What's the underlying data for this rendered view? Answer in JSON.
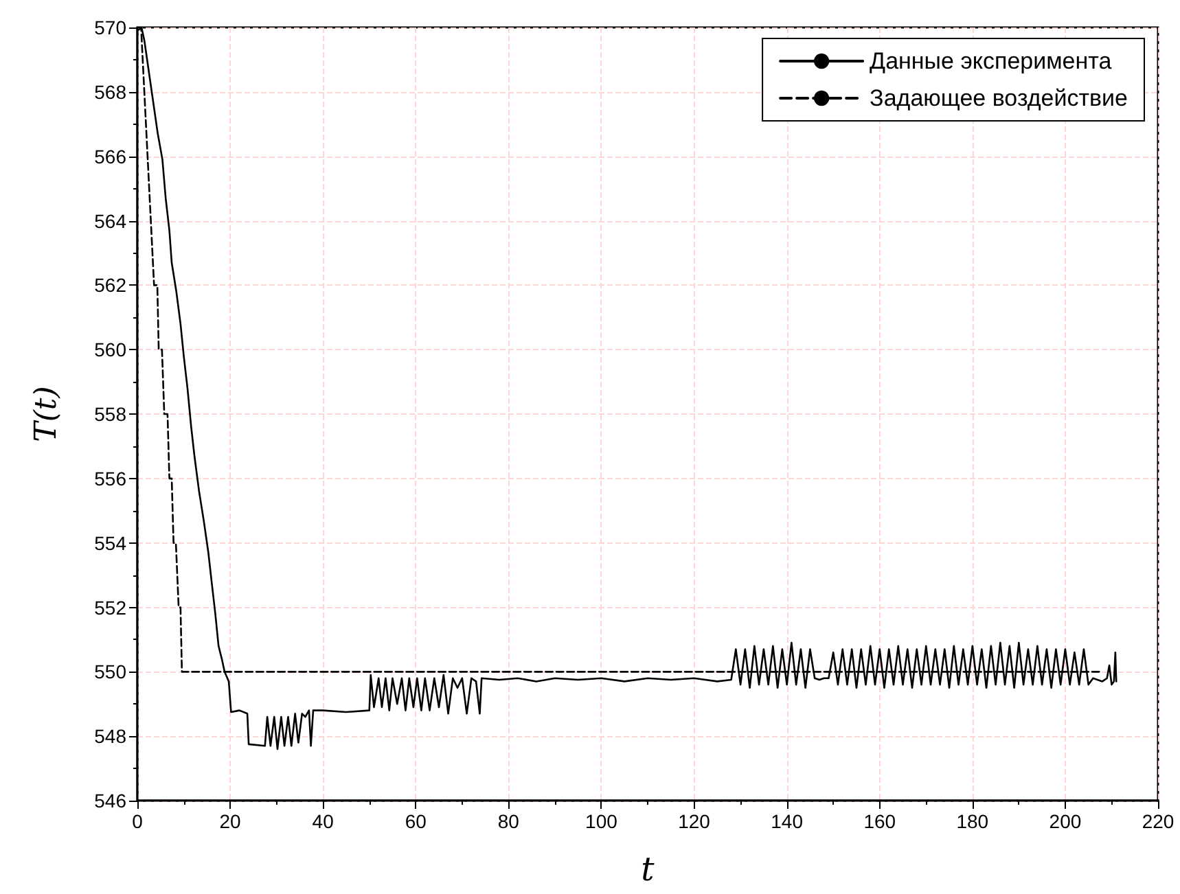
{
  "chart_data": {
    "type": "line",
    "xlabel": "t",
    "ylabel": "T(t)",
    "xlim": [
      0,
      220
    ],
    "xticks": [
      0,
      20,
      40,
      60,
      80,
      100,
      120,
      140,
      160,
      180,
      200,
      220
    ],
    "ylim": [
      546,
      570
    ],
    "yticks": [
      546,
      548,
      550,
      552,
      554,
      556,
      558,
      560,
      562,
      564,
      566,
      568,
      570
    ],
    "grid": true,
    "legend": "top right",
    "marker": "none",
    "series": [
      {
        "name": "Данные эксперимента",
        "color": "#000000",
        "line_style": "solid",
        "x": [
          0,
          0.9,
          1.5,
          2.4,
          3.2,
          4.4,
          5.4,
          6.1,
          6.9,
          7.4,
          8.4,
          9.3,
          10,
          10.8,
          11.6,
          12.3,
          13.3,
          14.3,
          15.3,
          16,
          16.8,
          17.5,
          18.2,
          18.8,
          19.7,
          20.2,
          22,
          23.7,
          24,
          27.5,
          28,
          28.7,
          29.5,
          30.2,
          31,
          31.7,
          32.5,
          33.2,
          34,
          34.7,
          35.5,
          36.2,
          37,
          37.4,
          37.9,
          40,
          45,
          50,
          50.3,
          51,
          52,
          52.7,
          53.5,
          54.3,
          55,
          56,
          57,
          57.8,
          58.6,
          59.5,
          60.3,
          61.2,
          62,
          63,
          64,
          65,
          66,
          67,
          68,
          69,
          70,
          71,
          72,
          73,
          73.8,
          74.2,
          78,
          82,
          86,
          90,
          95,
          100,
          105,
          110,
          115,
          120,
          125,
          128,
          129,
          130,
          131,
          132,
          133,
          134,
          135,
          136,
          137,
          138,
          139,
          140,
          141,
          142,
          143,
          144,
          145,
          146,
          147,
          148,
          149,
          150,
          151,
          152,
          153,
          154,
          155,
          156,
          157,
          158,
          159,
          160,
          161,
          162,
          163,
          164,
          165,
          166,
          167,
          168,
          169,
          170,
          171,
          172,
          173,
          174,
          175,
          176,
          177,
          178,
          179,
          180,
          181,
          182,
          183,
          184,
          185,
          186,
          187,
          188,
          189,
          190,
          191,
          192,
          193,
          194,
          195,
          196,
          197,
          198,
          199,
          200,
          201,
          202,
          203,
          204,
          205,
          206,
          208,
          209,
          209.5,
          210,
          210.5,
          210.8,
          211
        ],
        "values": [
          569.9,
          570,
          569.6,
          568.7,
          567.9,
          566.7,
          565.9,
          564.7,
          563.7,
          562.7,
          561.8,
          560.8,
          559.8,
          558.8,
          557.6,
          556.7,
          555.6,
          554.7,
          553.7,
          552.8,
          551.8,
          550.8,
          550.4,
          550,
          549.7,
          548.75,
          548.8,
          548.7,
          547.75,
          547.7,
          548.6,
          547.7,
          548.6,
          547.6,
          548.6,
          547.7,
          548.6,
          547.7,
          548.7,
          547.8,
          548.7,
          548.6,
          548.8,
          547.7,
          548.8,
          548.8,
          548.75,
          548.8,
          549.9,
          548.9,
          549.8,
          548.9,
          549.8,
          548.8,
          549.8,
          549,
          549.8,
          548.8,
          549.8,
          548.9,
          549.8,
          548.8,
          549.8,
          548.8,
          549.8,
          548.9,
          549.9,
          548.7,
          549.8,
          549.5,
          549.8,
          548.7,
          549.8,
          549.7,
          548.7,
          549.8,
          549.75,
          549.8,
          549.7,
          549.8,
          549.75,
          549.8,
          549.7,
          549.8,
          549.75,
          549.8,
          549.7,
          549.75,
          550.7,
          549.6,
          550.7,
          549.5,
          550.8,
          549.6,
          550.7,
          549.6,
          550.8,
          549.5,
          550.7,
          549.6,
          550.9,
          549.6,
          550.7,
          549.5,
          550.7,
          549.8,
          549.75,
          549.8,
          549.8,
          550.6,
          549.6,
          550.7,
          549.6,
          550.7,
          549.5,
          550.7,
          549.6,
          550.8,
          549.6,
          550.7,
          549.5,
          550.7,
          549.6,
          550.8,
          549.6,
          550.7,
          549.5,
          550.7,
          549.6,
          550.8,
          549.6,
          550.7,
          549.6,
          550.7,
          549.5,
          550.8,
          549.6,
          550.7,
          549.6,
          550.8,
          549.6,
          550.7,
          549.5,
          550.8,
          549.6,
          550.9,
          549.6,
          550.8,
          549.5,
          550.9,
          549.6,
          550.7,
          549.6,
          550.8,
          549.6,
          550.7,
          549.5,
          550.7,
          549.6,
          550.7,
          549.6,
          550.6,
          549.6,
          550.7,
          549.6,
          549.8,
          549.7,
          549.8,
          550.2,
          549.6,
          549.7,
          550.6,
          549.7
        ]
      },
      {
        "name": "Задающее воздействие",
        "color": "#000000",
        "line_style": "dashed",
        "x": [
          0,
          0.8,
          3.6,
          4.3,
          4.6,
          5.3,
          5.8,
          6.5,
          6.9,
          7.4,
          7.8,
          8.3,
          8.9,
          9.3,
          9.6,
          208
        ],
        "values": [
          570,
          570,
          562,
          562,
          560,
          560,
          558,
          558,
          556,
          556,
          554,
          554,
          552,
          552,
          550,
          550
        ]
      }
    ]
  }
}
